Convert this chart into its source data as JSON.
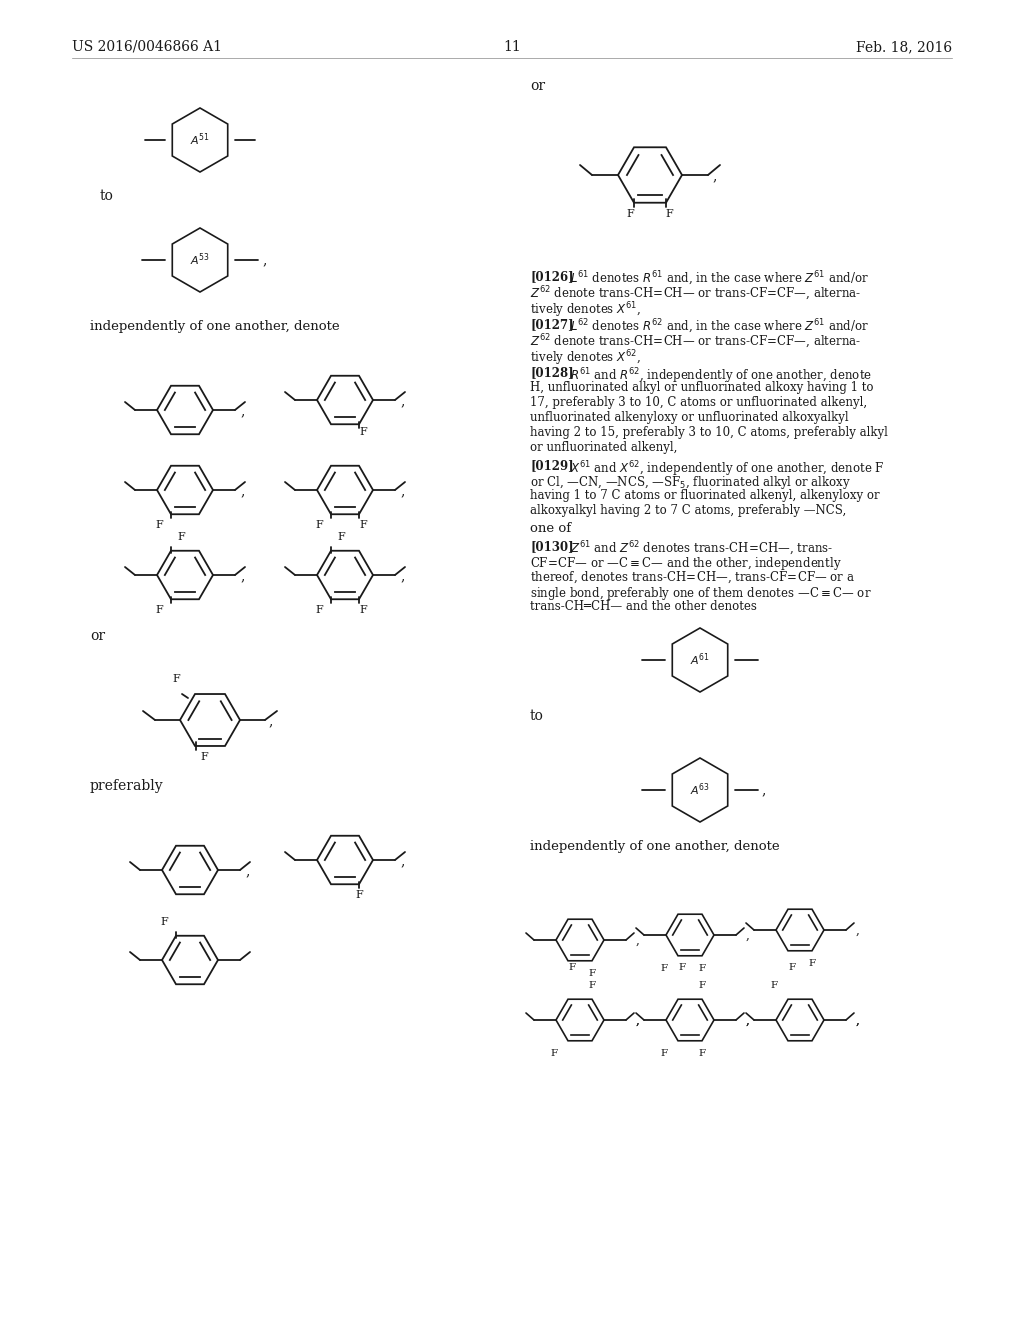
{
  "bg_color": "#ffffff",
  "header_left": "US 2016/0046866 A1",
  "header_right": "Feb. 18, 2016",
  "page_number": "11",
  "text_color": "#1a1a1a"
}
